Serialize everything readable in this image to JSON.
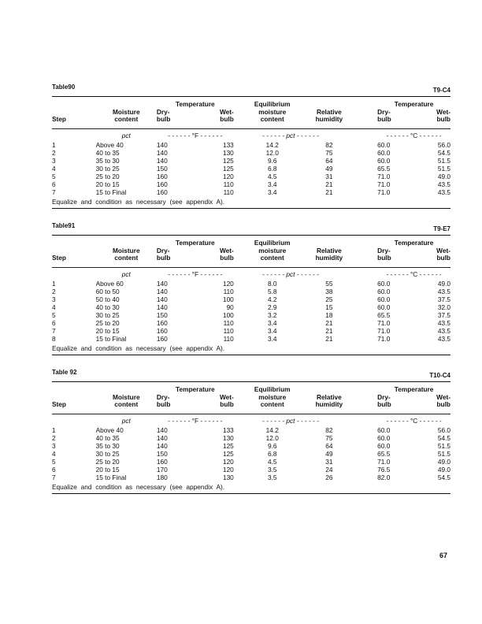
{
  "columns": {
    "step": "Step",
    "moisture": [
      "Moisture",
      "content"
    ],
    "temp_group": "Temperature",
    "dry": [
      "Dry-",
      "bulb"
    ],
    "wet": [
      "Wet-",
      "bulb"
    ],
    "emc": [
      "Equilibrium",
      "moisture",
      "content"
    ],
    "rh": [
      "Relative",
      "humidity"
    ]
  },
  "units": {
    "moisture": "pct",
    "fahrenheit": "- - - - - - °F - - - - - -",
    "pct": "- - - - - - pct - - - - - -",
    "celsius": "- - - - - - °C - - - - - -"
  },
  "tables": [
    {
      "title": "Table90",
      "code": "T9-C4",
      "rows": [
        [
          "1",
          "Above 40",
          "140",
          "133",
          "14.2",
          "82",
          "60.0",
          "56.0"
        ],
        [
          "2",
          "40 to 35",
          "140",
          "130",
          "12.0",
          "75",
          "60.0",
          "54.5"
        ],
        [
          "3",
          "35 to 30",
          "140",
          "125",
          "9.6",
          "64",
          "60.0",
          "51.5"
        ],
        [
          "4",
          "30 to 25",
          "150",
          "125",
          "6.8",
          "49",
          "65.5",
          "51.5"
        ],
        [
          "5",
          "25 to 20",
          "160",
          "120",
          "4.5",
          "31",
          "71.0",
          "49.0"
        ],
        [
          "6",
          "20 to 15",
          "160",
          "110",
          "3.4",
          "21",
          "71.0",
          "43.5"
        ],
        [
          "7",
          "15 to Final",
          "160",
          "110",
          "3.4",
          "21",
          "71.0",
          "43.5"
        ]
      ],
      "note": "Equalize and condition as necessary (see appendix A)."
    },
    {
      "title": "Table91",
      "code": "T9-E7",
      "rows": [
        [
          "1",
          "Above 60",
          "140",
          "120",
          "8.0",
          "55",
          "60.0",
          "49.0"
        ],
        [
          "2",
          "60 to 50",
          "140",
          "110",
          "5.8",
          "38",
          "60.0",
          "43.5"
        ],
        [
          "3",
          "50 to 40",
          "140",
          "100",
          "4.2",
          "25",
          "60.0",
          "37.5"
        ],
        [
          "4",
          "40 to 30",
          "140",
          "90",
          "2.9",
          "15",
          "60.0",
          "32.0"
        ],
        [
          "5",
          "30 to 25",
          "150",
          "100",
          "3.2",
          "18",
          "65.5",
          "37.5"
        ],
        [
          "6",
          "25 to 20",
          "160",
          "110",
          "3.4",
          "21",
          "71.0",
          "43.5"
        ],
        [
          "7",
          "20 to 15",
          "160",
          "110",
          "3.4",
          "21",
          "71.0",
          "43.5"
        ],
        [
          "8",
          "15 to Final",
          "160",
          "110",
          "3.4",
          "21",
          "71.0",
          "43.5"
        ]
      ],
      "note": "Equalize and condition as necessary (see appendix A)."
    },
    {
      "title": "Table 92",
      "code": "T10-C4",
      "rows": [
        [
          "1",
          "Above 40",
          "140",
          "133",
          "14.2",
          "82",
          "60.0",
          "56.0"
        ],
        [
          "2",
          "40 to 35",
          "140",
          "130",
          "12.0",
          "75",
          "60.0",
          "54.5"
        ],
        [
          "3",
          "35 to 30",
          "140",
          "125",
          "9.6",
          "64",
          "60.0",
          "51.5"
        ],
        [
          "4",
          "30 to 25",
          "150",
          "125",
          "6.8",
          "49",
          "65.5",
          "51.5"
        ],
        [
          "5",
          "25 to 20",
          "160",
          "120",
          "4.5",
          "31",
          "71.0",
          "49.0"
        ],
        [
          "6",
          "20 to 15",
          "170",
          "120",
          "3.5",
          "24",
          "76.5",
          "49.0"
        ],
        [
          "7",
          "15 to Final",
          "180",
          "130",
          "3.5",
          "26",
          "82.0",
          "54.5"
        ]
      ],
      "note": "Equalize and condition as necessary (see appendix A)."
    }
  ],
  "page_number": "67"
}
